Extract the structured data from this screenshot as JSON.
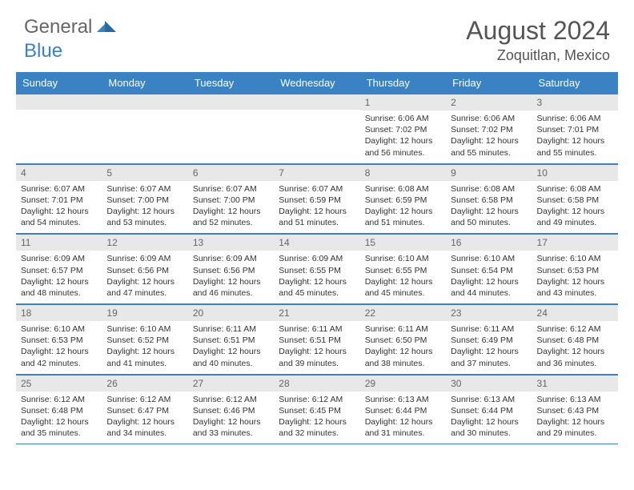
{
  "logo": {
    "part1": "General",
    "part2": "Blue"
  },
  "title": "August 2024",
  "location": "Zoquitlan, Mexico",
  "colors": {
    "header_bg": "#3b82c4",
    "header_text": "#ffffff",
    "daynum_bg": "#e8e8e8",
    "border": "#3b82c4",
    "body_text": "#333333"
  },
  "day_headers": [
    "Sunday",
    "Monday",
    "Tuesday",
    "Wednesday",
    "Thursday",
    "Friday",
    "Saturday"
  ],
  "weeks": [
    [
      null,
      null,
      null,
      null,
      {
        "n": "1",
        "sr": "6:06 AM",
        "ss": "7:02 PM",
        "dl": "12 hours and 56 minutes."
      },
      {
        "n": "2",
        "sr": "6:06 AM",
        "ss": "7:02 PM",
        "dl": "12 hours and 55 minutes."
      },
      {
        "n": "3",
        "sr": "6:06 AM",
        "ss": "7:01 PM",
        "dl": "12 hours and 55 minutes."
      }
    ],
    [
      {
        "n": "4",
        "sr": "6:07 AM",
        "ss": "7:01 PM",
        "dl": "12 hours and 54 minutes."
      },
      {
        "n": "5",
        "sr": "6:07 AM",
        "ss": "7:00 PM",
        "dl": "12 hours and 53 minutes."
      },
      {
        "n": "6",
        "sr": "6:07 AM",
        "ss": "7:00 PM",
        "dl": "12 hours and 52 minutes."
      },
      {
        "n": "7",
        "sr": "6:07 AM",
        "ss": "6:59 PM",
        "dl": "12 hours and 51 minutes."
      },
      {
        "n": "8",
        "sr": "6:08 AM",
        "ss": "6:59 PM",
        "dl": "12 hours and 51 minutes."
      },
      {
        "n": "9",
        "sr": "6:08 AM",
        "ss": "6:58 PM",
        "dl": "12 hours and 50 minutes."
      },
      {
        "n": "10",
        "sr": "6:08 AM",
        "ss": "6:58 PM",
        "dl": "12 hours and 49 minutes."
      }
    ],
    [
      {
        "n": "11",
        "sr": "6:09 AM",
        "ss": "6:57 PM",
        "dl": "12 hours and 48 minutes."
      },
      {
        "n": "12",
        "sr": "6:09 AM",
        "ss": "6:56 PM",
        "dl": "12 hours and 47 minutes."
      },
      {
        "n": "13",
        "sr": "6:09 AM",
        "ss": "6:56 PM",
        "dl": "12 hours and 46 minutes."
      },
      {
        "n": "14",
        "sr": "6:09 AM",
        "ss": "6:55 PM",
        "dl": "12 hours and 45 minutes."
      },
      {
        "n": "15",
        "sr": "6:10 AM",
        "ss": "6:55 PM",
        "dl": "12 hours and 45 minutes."
      },
      {
        "n": "16",
        "sr": "6:10 AM",
        "ss": "6:54 PM",
        "dl": "12 hours and 44 minutes."
      },
      {
        "n": "17",
        "sr": "6:10 AM",
        "ss": "6:53 PM",
        "dl": "12 hours and 43 minutes."
      }
    ],
    [
      {
        "n": "18",
        "sr": "6:10 AM",
        "ss": "6:53 PM",
        "dl": "12 hours and 42 minutes."
      },
      {
        "n": "19",
        "sr": "6:10 AM",
        "ss": "6:52 PM",
        "dl": "12 hours and 41 minutes."
      },
      {
        "n": "20",
        "sr": "6:11 AM",
        "ss": "6:51 PM",
        "dl": "12 hours and 40 minutes."
      },
      {
        "n": "21",
        "sr": "6:11 AM",
        "ss": "6:51 PM",
        "dl": "12 hours and 39 minutes."
      },
      {
        "n": "22",
        "sr": "6:11 AM",
        "ss": "6:50 PM",
        "dl": "12 hours and 38 minutes."
      },
      {
        "n": "23",
        "sr": "6:11 AM",
        "ss": "6:49 PM",
        "dl": "12 hours and 37 minutes."
      },
      {
        "n": "24",
        "sr": "6:12 AM",
        "ss": "6:48 PM",
        "dl": "12 hours and 36 minutes."
      }
    ],
    [
      {
        "n": "25",
        "sr": "6:12 AM",
        "ss": "6:48 PM",
        "dl": "12 hours and 35 minutes."
      },
      {
        "n": "26",
        "sr": "6:12 AM",
        "ss": "6:47 PM",
        "dl": "12 hours and 34 minutes."
      },
      {
        "n": "27",
        "sr": "6:12 AM",
        "ss": "6:46 PM",
        "dl": "12 hours and 33 minutes."
      },
      {
        "n": "28",
        "sr": "6:12 AM",
        "ss": "6:45 PM",
        "dl": "12 hours and 32 minutes."
      },
      {
        "n": "29",
        "sr": "6:13 AM",
        "ss": "6:44 PM",
        "dl": "12 hours and 31 minutes."
      },
      {
        "n": "30",
        "sr": "6:13 AM",
        "ss": "6:44 PM",
        "dl": "12 hours and 30 minutes."
      },
      {
        "n": "31",
        "sr": "6:13 AM",
        "ss": "6:43 PM",
        "dl": "12 hours and 29 minutes."
      }
    ]
  ],
  "labels": {
    "sunrise": "Sunrise:",
    "sunset": "Sunset:",
    "daylight": "Daylight:"
  }
}
